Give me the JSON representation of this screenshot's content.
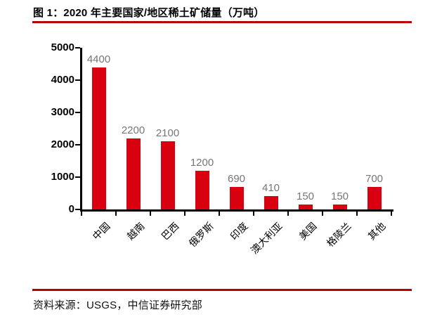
{
  "figure": {
    "title": "图 1：2020 年主要国家/地区稀土矿储量（万吨）",
    "source": "资料来源：USGS，中信证券研究部"
  },
  "chart_data": {
    "type": "bar",
    "title": "2020 年主要国家/地区稀土矿储量（万吨）",
    "categories": [
      "中国",
      "越南",
      "巴西",
      "俄罗斯",
      "印度",
      "澳大利亚",
      "美国",
      "格陵兰",
      "其他"
    ],
    "values": [
      4400,
      2200,
      2100,
      1200,
      690,
      410,
      150,
      150,
      700
    ],
    "data_labels_shown": true,
    "xlabel": "",
    "ylabel": "",
    "ylim": [
      0,
      5000
    ],
    "yticks": [
      0,
      1000,
      2000,
      3000,
      4000,
      5000
    ],
    "grid": false,
    "legend_position": "none"
  },
  "colors": {
    "bar": "#d9000f",
    "accent_rule": "#b80000",
    "value_label": "#767676",
    "axis": "#000000"
  }
}
